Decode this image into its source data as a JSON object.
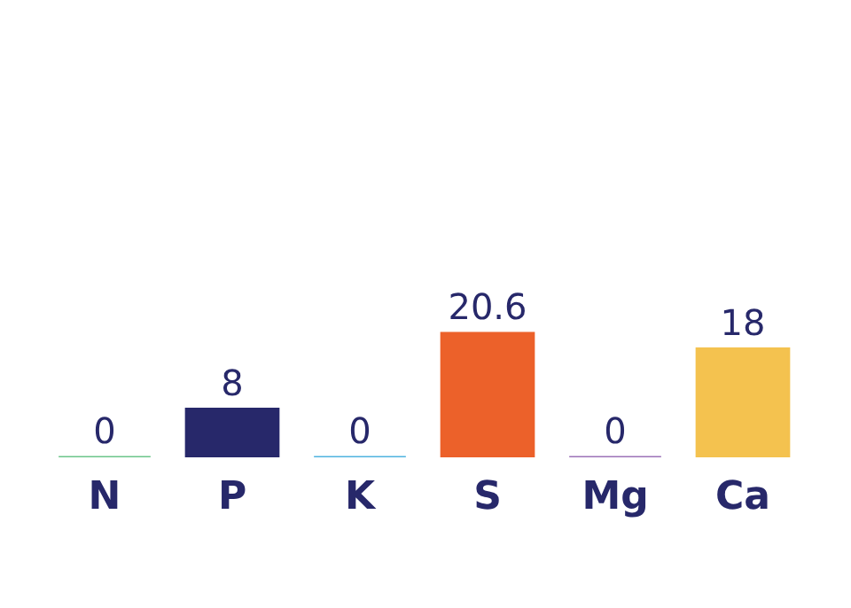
{
  "chart_data": {
    "type": "bar",
    "categories": [
      "N",
      "P",
      "K",
      "S",
      "Mg",
      "Ca"
    ],
    "values": [
      0,
      8,
      0,
      20.6,
      0,
      18
    ],
    "colors": [
      "#6cc58a",
      "#27286a",
      "#4fb3e0",
      "#ec612a",
      "#9c72b8",
      "#f4c24f"
    ],
    "data_labels": true
  }
}
